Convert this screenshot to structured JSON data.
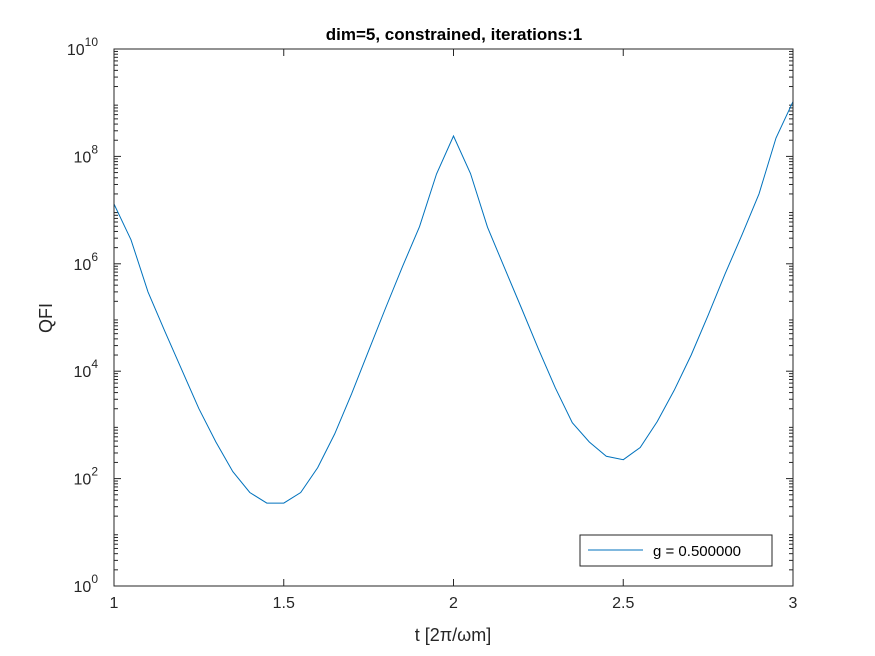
{
  "chart_data": {
    "type": "line",
    "title": "dim=5, constrained, iterations:1",
    "xlabel": "t [2π/ωm]",
    "ylabel": "QFI",
    "xlim": [
      1,
      3
    ],
    "ylim": [
      1,
      10000000000
    ],
    "yscale": "log",
    "grid": false,
    "legend_position": "bottom-right",
    "x_ticks": [
      "1",
      "1.5",
      "2",
      "2.5",
      "3"
    ],
    "y_ticks": [
      {
        "base": "10",
        "exp": "0"
      },
      {
        "base": "10",
        "exp": "2"
      },
      {
        "base": "10",
        "exp": "4"
      },
      {
        "base": "10",
        "exp": "6"
      },
      {
        "base": "10",
        "exp": "8"
      },
      {
        "base": "10",
        "exp": "10"
      }
    ],
    "series": [
      {
        "name": "g = 0.500000",
        "color": "#0072BD",
        "x": [
          1.0,
          1.05,
          1.1,
          1.15,
          1.2,
          1.25,
          1.3,
          1.35,
          1.4,
          1.45,
          1.5,
          1.55,
          1.6,
          1.65,
          1.7,
          1.75,
          1.8,
          1.85,
          1.9,
          1.95,
          2.0,
          2.05,
          2.1,
          2.15,
          2.2,
          2.25,
          2.3,
          2.35,
          2.4,
          2.45,
          2.5,
          2.55,
          2.6,
          2.65,
          2.7,
          2.75,
          2.8,
          2.85,
          2.9,
          2.95,
          3.0
        ],
        "y": [
          13000000,
          2800000,
          300000,
          55000,
          10500,
          2000,
          480,
          135,
          55,
          35,
          35,
          55,
          160,
          680,
          3800,
          24000,
          150000,
          900000,
          4900000,
          47000000,
          240000000,
          48000000,
          4800000,
          850000,
          150000,
          26000,
          4900,
          1100,
          480,
          260,
          225,
          380,
          1150,
          4400,
          20000,
          110000,
          650000,
          3500000,
          20000000,
          220000000,
          1050000000
        ]
      }
    ]
  }
}
